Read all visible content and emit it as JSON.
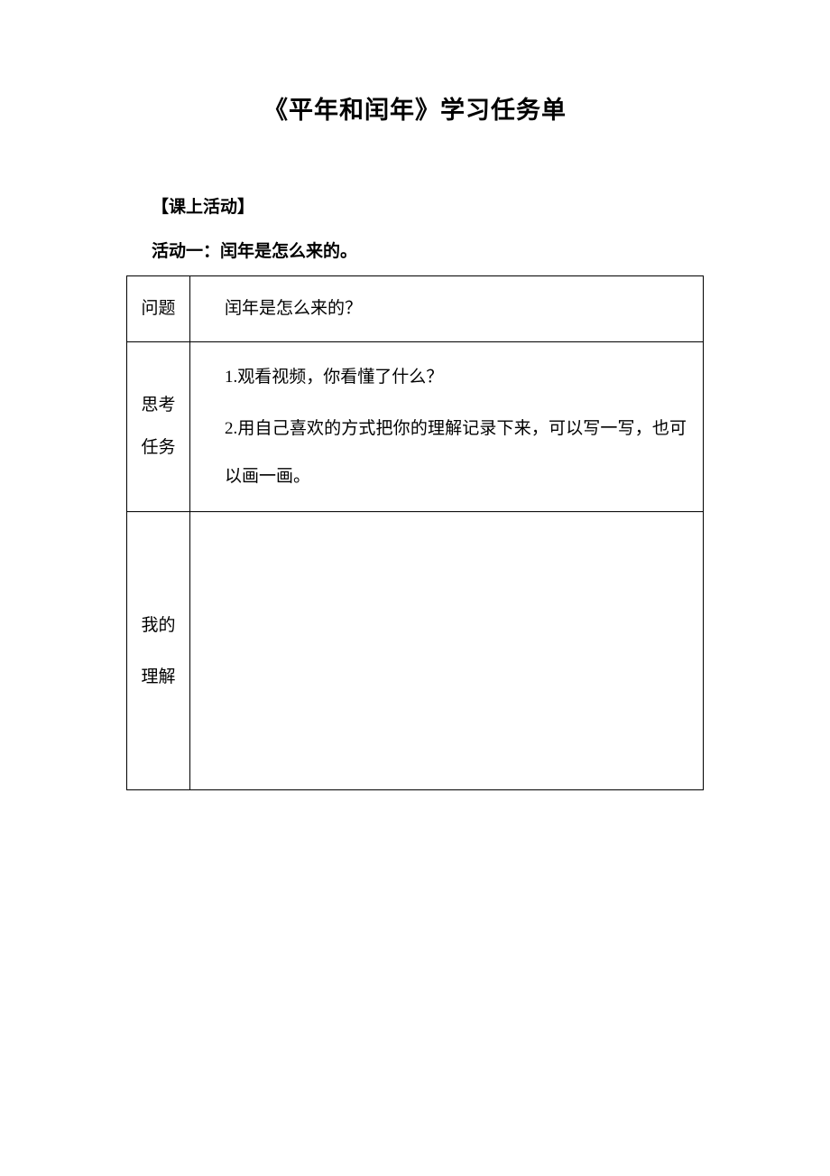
{
  "colors": {
    "background": "#ffffff",
    "text": "#000000",
    "border": "#000000"
  },
  "typography": {
    "title_fontsize": 27,
    "body_fontsize": 19,
    "font_family": "SimSun"
  },
  "title": "《平年和闰年》学习任务单",
  "section_label": "【课上活动】",
  "activity": {
    "title": "活动一：闰年是怎么来的。",
    "table": {
      "rows": [
        {
          "label": "问题",
          "content": "闰年是怎么来的？"
        },
        {
          "label": "思考\n任务",
          "content_items": [
            "1.观看视频，你看懂了什么？",
            "2.用自己喜欢的方式把你的理解记录下来，可以写一写，也可以画一画。"
          ]
        },
        {
          "label": "我的\n理解",
          "content": ""
        }
      ]
    }
  }
}
